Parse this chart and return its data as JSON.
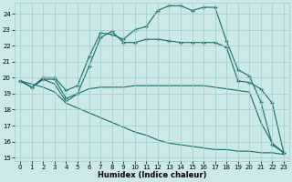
{
  "xlabel": "Humidex (Indice chaleur)",
  "xlim": [
    -0.5,
    23.5
  ],
  "ylim": [
    14.8,
    24.7
  ],
  "yticks": [
    15,
    16,
    17,
    18,
    19,
    20,
    21,
    22,
    23,
    24
  ],
  "xticks": [
    0,
    1,
    2,
    3,
    4,
    5,
    6,
    7,
    8,
    9,
    10,
    11,
    12,
    13,
    14,
    15,
    16,
    17,
    18,
    19,
    20,
    21,
    22,
    23
  ],
  "bg_color": "#cce8e8",
  "grid_color": "#a0cccc",
  "line_color": "#1a6b6b",
  "line1_x": [
    0,
    1,
    2,
    3,
    4,
    5,
    6,
    7,
    8,
    9,
    10,
    11,
    12,
    13,
    14,
    15,
    16,
    17,
    18,
    19,
    20,
    21,
    22,
    23
  ],
  "line1_y": [
    19.8,
    19.4,
    20.0,
    20.0,
    19.2,
    19.5,
    21.3,
    22.8,
    22.7,
    22.4,
    23.0,
    23.2,
    24.2,
    24.5,
    24.5,
    24.2,
    24.4,
    24.4,
    22.3,
    20.5,
    20.1,
    18.5,
    15.8,
    15.3
  ],
  "line2_x": [
    0,
    1,
    2,
    3,
    4,
    5,
    6,
    7,
    8,
    9,
    10,
    11,
    12,
    13,
    14,
    15,
    16,
    17,
    18,
    19,
    20,
    21,
    22,
    23
  ],
  "line2_y": [
    19.8,
    19.4,
    19.9,
    19.9,
    18.7,
    19.0,
    20.7,
    22.5,
    22.9,
    22.2,
    22.2,
    22.4,
    22.4,
    22.3,
    22.2,
    22.2,
    22.2,
    22.2,
    21.9,
    19.8,
    19.7,
    19.3,
    18.4,
    15.3
  ],
  "line3_x": [
    0,
    1,
    2,
    3,
    4,
    5,
    6,
    7,
    8,
    9,
    10,
    11,
    12,
    13,
    14,
    15,
    16,
    17,
    18,
    19,
    20,
    21,
    22,
    23
  ],
  "line3_y": [
    19.8,
    19.4,
    19.9,
    19.6,
    18.5,
    19.0,
    19.3,
    19.4,
    19.4,
    19.4,
    19.5,
    19.5,
    19.5,
    19.5,
    19.5,
    19.5,
    19.5,
    19.4,
    19.3,
    19.2,
    19.1,
    17.2,
    15.9,
    15.3
  ],
  "line4_x": [
    0,
    1,
    2,
    3,
    4,
    5,
    6,
    7,
    8,
    9,
    10,
    11,
    12,
    13,
    14,
    15,
    16,
    17,
    18,
    19,
    20,
    21,
    22,
    23
  ],
  "line4_y": [
    19.8,
    19.6,
    19.4,
    19.1,
    18.4,
    18.1,
    17.8,
    17.5,
    17.2,
    16.9,
    16.6,
    16.4,
    16.1,
    15.9,
    15.8,
    15.7,
    15.6,
    15.5,
    15.5,
    15.4,
    15.4,
    15.3,
    15.3,
    15.2
  ]
}
